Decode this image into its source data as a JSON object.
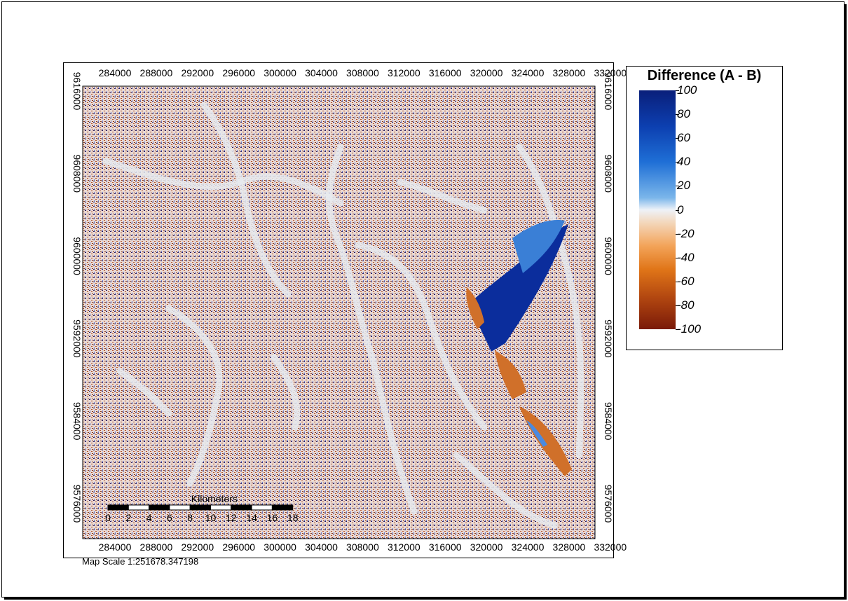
{
  "legend": {
    "title": "Difference (A - B)",
    "labels": [
      "100",
      "80",
      "60",
      "40",
      "20",
      "0",
      "-20",
      "-40",
      "-60",
      "-80",
      "-100"
    ],
    "colors": {
      "max": "#0a1f7a",
      "mid": "#eef2f8",
      "min": "#7a1a08"
    }
  },
  "grid": {
    "x_labels": [
      "284000",
      "288000",
      "292000",
      "296000",
      "300000",
      "304000",
      "308000",
      "312000",
      "316000",
      "320000",
      "324000",
      "328000",
      "332000"
    ],
    "y_labels": [
      "9616000",
      "9608000",
      "9600000",
      "9592000",
      "9584000",
      "9576000"
    ]
  },
  "scale_bar": {
    "unit": "Kilometers",
    "ticks": [
      "0",
      "2",
      "4",
      "6",
      "8",
      "10",
      "12",
      "14",
      "16",
      "18"
    ]
  },
  "map_scale_text": "Map Scale 1:251678.347198",
  "colors": {
    "blue_diff": "#0b2d9c",
    "orange_diff": "#d0702a",
    "ridge": "#e6eaef",
    "speckle_dark": "#2a1858",
    "speckle_red": "#b0502a"
  }
}
